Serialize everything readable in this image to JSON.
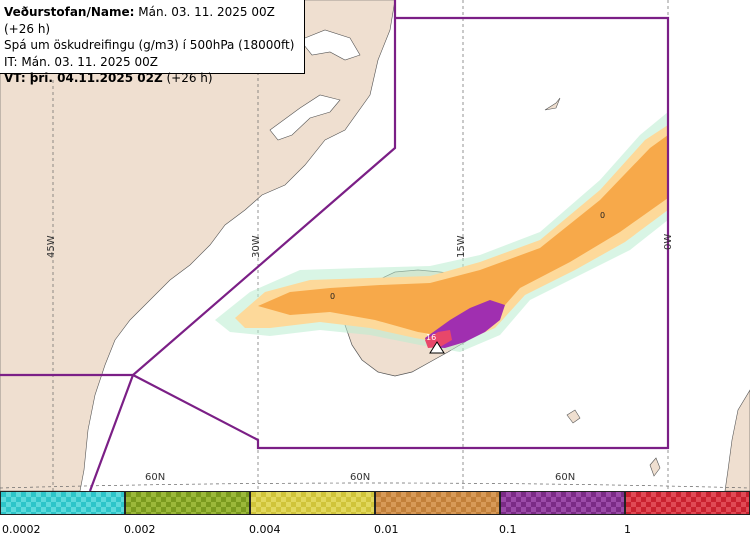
{
  "header": {
    "line1_bold": "Veðurstofan/Name:",
    "line1_rest": " Mán. 03. 11. 2025 00Z (+26 h)",
    "line2": "Spá um öskudreifingu (g/m3) í 500hPa (18000ft)",
    "line3": "IT: Mán. 03. 11. 2025 00Z",
    "line4_bold": "VT: þri. 04.11.2025 02Z",
    "line4_rest": " (+26 h)"
  },
  "map": {
    "longitude_labels": [
      "45W",
      "30W",
      "15W",
      "0W"
    ],
    "latitude_labels": [
      "60N",
      "60N",
      "60N"
    ],
    "contour_labels": [
      "0",
      "0"
    ],
    "volcano_label": "16",
    "colors": {
      "ocean": "#ffffff",
      "land": "#efdfd0",
      "boundary": "#7b1f86",
      "ash_light": "#fdd99a",
      "ash_orange": "#f7a94a",
      "ash_purple": "#a02fb0",
      "ash_red": "#e8476a"
    }
  },
  "legend": {
    "bins": [
      {
        "color": "#2dc5c9",
        "alt": "#5ddadc"
      },
      {
        "color": "#7a9a1e",
        "alt": "#9bb83a"
      },
      {
        "color": "#d0c43a",
        "alt": "#e2d85e"
      },
      {
        "color": "#c2803a",
        "alt": "#d79a58"
      },
      {
        "color": "#7b2b86",
        "alt": "#9b4aa8"
      },
      {
        "color": "#c9212f",
        "alt": "#e04a55"
      }
    ],
    "ticks": [
      "0.0002",
      "0.002",
      "0.004",
      "0.01",
      "0.1",
      "1"
    ]
  }
}
